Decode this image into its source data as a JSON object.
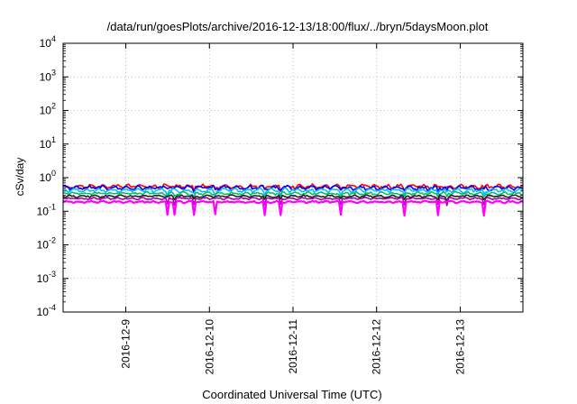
{
  "chart_data": {
    "type": "line",
    "title": "/data/run/goesPlots/archive/2016-12-13/18:00/flux/../bryn/5daysMoon.plot",
    "xlabel": "Coordinated Universal Time (UTC)",
    "ylabel": "cSv/day",
    "yscale": "log",
    "ylim": [
      0.0001,
      10000
    ],
    "xlim": [
      "2016-12-08 06:00",
      "2016-12-13 18:00"
    ],
    "grid": true,
    "x_ticks": [
      "2016-12-9",
      "2016-12-10",
      "2016-12-11",
      "2016-12-12",
      "2016-12-13"
    ],
    "y_ticks": [
      {
        "base": "10",
        "exp": "4"
      },
      {
        "base": "10",
        "exp": "3"
      },
      {
        "base": "10",
        "exp": "2"
      },
      {
        "base": "10",
        "exp": "1"
      },
      {
        "base": "10",
        "exp": "0"
      },
      {
        "base": "10",
        "exp": "-1"
      },
      {
        "base": "10",
        "exp": "-2"
      },
      {
        "base": "10",
        "exp": "-3"
      },
      {
        "base": "10",
        "exp": "-4"
      }
    ],
    "series": [
      {
        "color": "#ff0000",
        "level": 0.55,
        "amp": 0.09,
        "dips": 0.15
      },
      {
        "color": "#0000ff",
        "level": 0.5,
        "amp": 0.09,
        "dips": 0.15
      },
      {
        "color": "#00bfff",
        "level": 0.42,
        "amp": 0.08,
        "dips": 0.2
      },
      {
        "color": "#00c060",
        "level": 0.34,
        "amp": 0.06,
        "dips": 0.2
      },
      {
        "color": "#202020",
        "level": 0.28,
        "amp": 0.05,
        "dips": 0.2
      },
      {
        "color": "#a000a0",
        "level": 0.24,
        "amp": 0.04,
        "dips": 0.35
      },
      {
        "color": "#ff00ff",
        "level": 0.19,
        "amp": 0.04,
        "dips": 0.6
      }
    ]
  }
}
